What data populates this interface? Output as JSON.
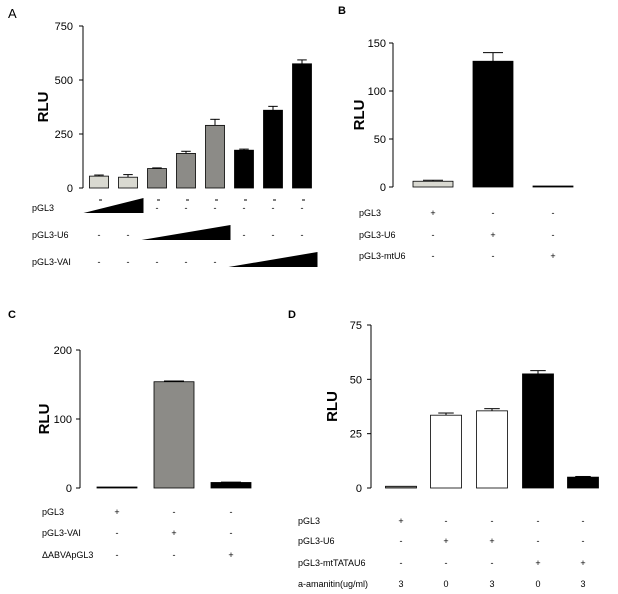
{
  "colors": {
    "light_gray": "#d9d9d1",
    "dark_gray": "#8c8b87",
    "black": "#000000",
    "white": "#ffffff"
  },
  "chart_data": [
    {
      "panel": "A",
      "type": "bar",
      "ylabel": "RLU",
      "ylim": [
        0,
        750
      ],
      "yticks": [
        0,
        250,
        500,
        750
      ],
      "values": [
        55,
        50,
        90,
        160,
        290,
        175,
        360,
        575
      ],
      "errors": [
        5,
        12,
        3,
        10,
        28,
        5,
        18,
        18
      ],
      "bar_colors": [
        "light_gray",
        "light_gray",
        "dark_gray",
        "dark_gray",
        "dark_gray",
        "black",
        "black",
        "black"
      ],
      "rows": [
        {
          "label": "pGL3",
          "cells": [
            "ramp",
            "ramp",
            "-",
            "-",
            "-",
            "-",
            "-",
            "-"
          ]
        },
        {
          "label": "pGL3-U6",
          "cells": [
            "-",
            "-",
            "ramp",
            "ramp",
            "ramp",
            "-",
            "-",
            "-"
          ]
        },
        {
          "label": "pGL3-VAI",
          "cells": [
            "-",
            "-",
            "-",
            "-",
            "-",
            "ramp",
            "ramp",
            "ramp"
          ]
        }
      ]
    },
    {
      "panel": "B",
      "type": "bar",
      "ylabel": "RLU",
      "ylim": [
        0,
        150
      ],
      "yticks": [
        0,
        50,
        100,
        150
      ],
      "values": [
        6,
        131,
        1
      ],
      "errors": [
        1,
        9,
        0.5
      ],
      "bar_colors": [
        "light_gray",
        "black",
        "black"
      ],
      "rows": [
        {
          "label": "pGL3",
          "cells": [
            "+",
            "-",
            "-"
          ]
        },
        {
          "label": "pGL3-U6",
          "cells": [
            "-",
            "+",
            "-"
          ]
        },
        {
          "label": "pGL3-mtU6",
          "cells": [
            "-",
            "-",
            "+"
          ]
        }
      ]
    },
    {
      "panel": "C",
      "type": "bar",
      "ylabel": "RLU",
      "ylim": [
        0,
        200
      ],
      "yticks": [
        0,
        100,
        200
      ],
      "values": [
        0.5,
        154,
        8
      ],
      "errors": [
        0,
        1,
        0.5
      ],
      "bar_colors": [
        "black",
        "dark_gray",
        "black"
      ],
      "rows": [
        {
          "label": "pGL3",
          "cells": [
            "+",
            "-",
            "-"
          ]
        },
        {
          "label": "pGL3-VAI",
          "cells": [
            "-",
            "+",
            "-"
          ]
        },
        {
          "label": "ΔABVApGL3",
          "cells": [
            "-",
            "-",
            "+"
          ]
        }
      ]
    },
    {
      "panel": "D",
      "type": "bar",
      "ylabel": "RLU",
      "ylim": [
        0,
        75
      ],
      "yticks": [
        0,
        25,
        50,
        75
      ],
      "values": [
        0.8,
        33.5,
        35.5,
        52.5,
        5
      ],
      "errors": [
        0.2,
        1,
        1,
        1.5,
        0.3
      ],
      "bar_colors": [
        "dark_gray",
        "white",
        "white",
        "black",
        "black"
      ],
      "rows": [
        {
          "label": "pGL3",
          "cells": [
            "+",
            "-",
            "-",
            "-",
            "-"
          ]
        },
        {
          "label": "pGL3-U6",
          "cells": [
            "-",
            "+",
            "+",
            "-",
            "-"
          ]
        },
        {
          "label": "pGL3-mtTATAU6",
          "cells": [
            "-",
            "-",
            "-",
            "+",
            "+"
          ]
        },
        {
          "label": "a-amanitin(ug/ml)",
          "cells": [
            "3",
            "0",
            "3",
            "0",
            "3"
          ]
        }
      ]
    }
  ]
}
